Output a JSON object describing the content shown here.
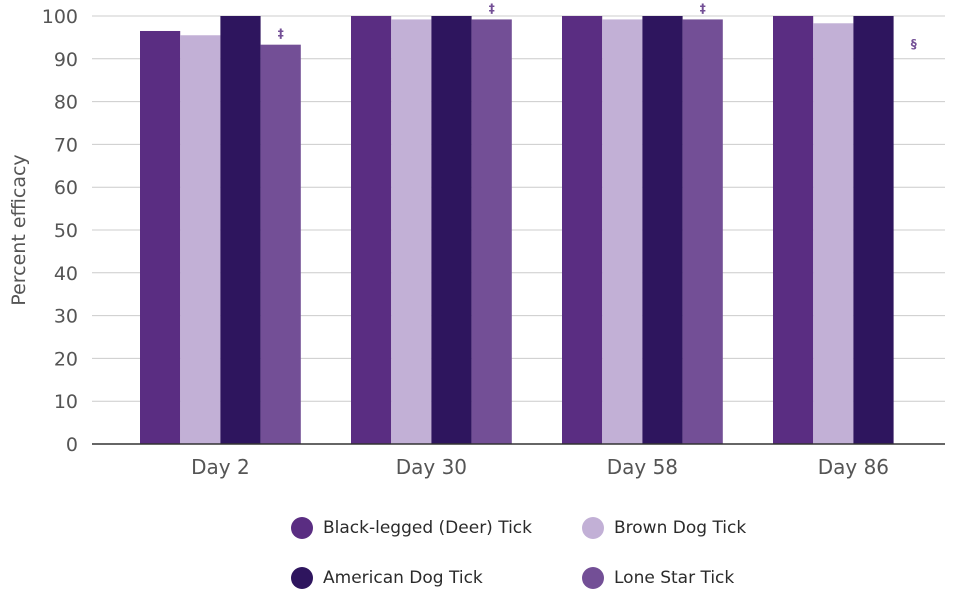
{
  "chart_data": {
    "type": "bar",
    "title": "",
    "xlabel": "",
    "ylabel": "Percent efficacy",
    "ylim": [
      0,
      100
    ],
    "yticks": [
      0,
      10,
      20,
      30,
      40,
      50,
      60,
      70,
      80,
      90,
      100
    ],
    "grid": true,
    "legend_position": "bottom",
    "categories": [
      "Day 2",
      "Day 30",
      "Day 58",
      "Day 86"
    ],
    "series": [
      {
        "name": "Black-legged (Deer) Tick",
        "color": "#5a2d82",
        "values": [
          96.5,
          100,
          100,
          100
        ]
      },
      {
        "name": "Brown Dog Tick",
        "color": "#c2b0d6",
        "values": [
          95.5,
          99.2,
          99.2,
          98.3
        ]
      },
      {
        "name": "American Dog Tick",
        "color": "#2e155e",
        "values": [
          100,
          100,
          100,
          100
        ]
      },
      {
        "name": "Lone Star Tick",
        "color": "#734f96",
        "values": [
          93.3,
          99.2,
          99.2,
          null
        ]
      }
    ],
    "annotations": [
      {
        "series": "Lone Star Tick",
        "category": "Day 2",
        "symbol": "‡"
      },
      {
        "series": "Lone Star Tick",
        "category": "Day 30",
        "symbol": "‡"
      },
      {
        "series": "Lone Star Tick",
        "category": "Day 58",
        "symbol": "‡"
      },
      {
        "series": "Lone Star Tick",
        "category": "Day 86",
        "symbol": "§"
      }
    ],
    "colors": {
      "grid": "#cccccc",
      "axis": "#333333",
      "text": "#555555",
      "marker": "#734f96"
    }
  }
}
